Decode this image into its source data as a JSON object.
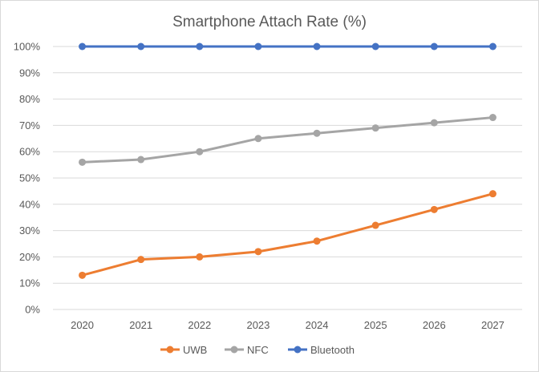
{
  "chart_data": {
    "type": "line",
    "title": "Smartphone Attach Rate (%)",
    "xlabel": "",
    "ylabel": "",
    "categories": [
      "2020",
      "2021",
      "2022",
      "2023",
      "2024",
      "2025",
      "2026",
      "2027"
    ],
    "ylim": [
      0,
      100
    ],
    "y_ticks": [
      "0%",
      "10%",
      "20%",
      "30%",
      "40%",
      "50%",
      "60%",
      "70%",
      "80%",
      "90%",
      "100%"
    ],
    "grid": true,
    "legend_position": "bottom",
    "series": [
      {
        "name": "UWB",
        "color": "#ED7D31",
        "values": [
          13,
          19,
          20,
          22,
          26,
          32,
          38,
          44
        ]
      },
      {
        "name": "NFC",
        "color": "#A5A5A5",
        "values": [
          56,
          57,
          60,
          65,
          67,
          69,
          71,
          73
        ]
      },
      {
        "name": "Bluetooth",
        "color": "#4472C4",
        "values": [
          100,
          100,
          100,
          100,
          100,
          100,
          100,
          100
        ]
      }
    ]
  }
}
